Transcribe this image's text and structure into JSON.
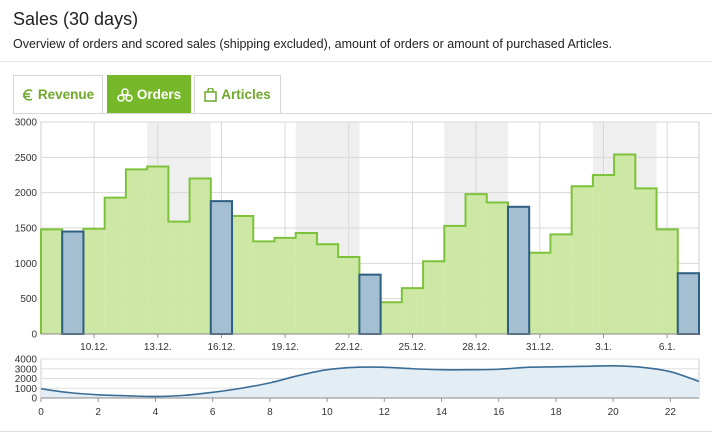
{
  "header": {
    "title": "Sales (30 days)",
    "subtitle": "Overview of orders and scored sales (shipping excluded), amount of orders or amount of purchased Articles."
  },
  "tabs": [
    {
      "label": "Revenue",
      "icon": "euro-icon",
      "active": false
    },
    {
      "label": "Orders",
      "icon": "coins-icon",
      "active": true
    },
    {
      "label": "Articles",
      "icon": "shopping-bag-icon",
      "active": false
    }
  ],
  "colors": {
    "accent": "#76b82a",
    "area_fill": "#cde8a4",
    "area_stroke": "#7ec23c",
    "weekend_fill": "#a3bfd1",
    "weekend_stroke": "#2e5e82",
    "shade": "#efefef",
    "mini_line": "#3a6d96"
  },
  "chart_data": [
    {
      "type": "bar",
      "chart": "main",
      "ylim": [
        0,
        3000
      ],
      "yticks": [
        0,
        500,
        1000,
        1500,
        2000,
        2500,
        3000
      ],
      "xticks": [
        "10.12.",
        "13.12.",
        "16.12.",
        "19.12.",
        "22.12.",
        "25.12.",
        "28.12.",
        "31.12.",
        "3.1.",
        "6.1."
      ],
      "xtick_positions": [
        2,
        5,
        8,
        11,
        14,
        17,
        20,
        23,
        26,
        29
      ],
      "values": [
        1480,
        1450,
        1490,
        1930,
        2330,
        2370,
        1590,
        2200,
        1880,
        1670,
        1310,
        1360,
        1430,
        1270,
        1090,
        840,
        450,
        650,
        1030,
        1530,
        1980,
        1860,
        1800,
        1150,
        1410,
        2090,
        2250,
        2540,
        2060,
        1480,
        860
      ],
      "weekend_indices": [
        1,
        8,
        15,
        22,
        30
      ],
      "shaded_ranges": [
        [
          5,
          7
        ],
        [
          12,
          14
        ],
        [
          19,
          21
        ],
        [
          26,
          28
        ]
      ]
    },
    {
      "type": "area",
      "chart": "navigator",
      "ylim": [
        0,
        4000
      ],
      "yticks": [
        0,
        1000,
        2000,
        3000,
        4000
      ],
      "xlim": [
        0,
        23
      ],
      "xticks": [
        0,
        2,
        4,
        6,
        8,
        10,
        12,
        14,
        16,
        18,
        20,
        22
      ],
      "x": [
        0,
        1,
        2,
        3,
        4,
        5,
        6,
        7,
        8,
        9,
        10,
        11,
        12,
        13,
        14,
        15,
        16,
        17,
        18,
        19,
        20,
        21,
        22,
        23
      ],
      "values": [
        950,
        550,
        330,
        230,
        160,
        270,
        580,
        1000,
        1550,
        2300,
        2900,
        3150,
        3150,
        3000,
        2900,
        2900,
        2950,
        3150,
        3200,
        3250,
        3300,
        3150,
        2700,
        1700
      ]
    }
  ]
}
